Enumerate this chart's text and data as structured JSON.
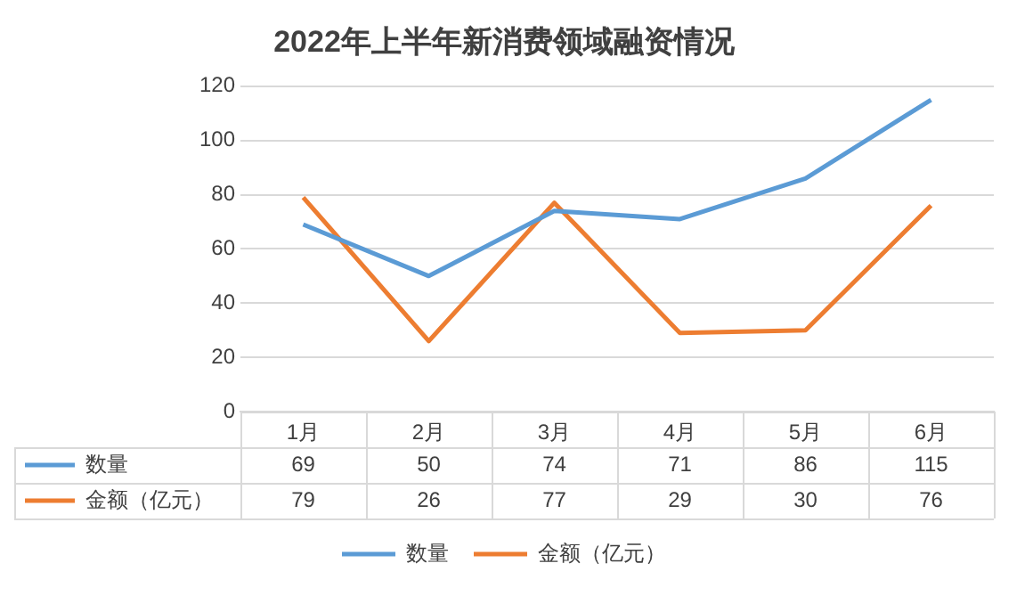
{
  "chart_data": {
    "type": "line",
    "title": "2022年上半年新消费领域融资情况",
    "categories": [
      "1月",
      "2月",
      "3月",
      "4月",
      "5月",
      "6月"
    ],
    "series": [
      {
        "name": "数量",
        "color": "#5b9bd5",
        "values": [
          69,
          50,
          74,
          71,
          86,
          115
        ]
      },
      {
        "name": "金额（亿元）",
        "color": "#ed7d31",
        "values": [
          79,
          26,
          77,
          29,
          30,
          76
        ]
      }
    ],
    "ylim": [
      0,
      120
    ],
    "yticks": [
      0,
      20,
      40,
      60,
      80,
      100,
      120
    ],
    "grid": "y",
    "legend": "bottom",
    "data_labels": true,
    "marker": "none",
    "line_style": "solid"
  }
}
